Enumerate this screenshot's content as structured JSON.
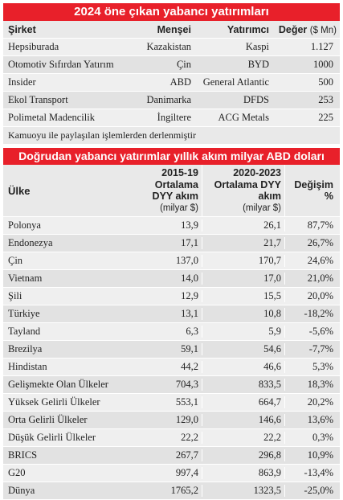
{
  "investments_table": {
    "title": "2024 öne çıkan yabancı yatırımları",
    "headers": {
      "company": "Şirket",
      "origin": "Menşei",
      "investor": "Yatırımcı",
      "value": "Değer",
      "value_unit": "($ Mn)"
    },
    "rows": [
      {
        "company": "Hepsiburada",
        "origin": "Kazakistan",
        "investor": "Kaspi",
        "value": "1.127"
      },
      {
        "company": "Otomotiv Sıfırdan Yatırım",
        "origin": "Çin",
        "investor": "BYD",
        "value": "1000"
      },
      {
        "company": "Insider",
        "origin": "ABD",
        "investor": "General Atlantic",
        "value": "500"
      },
      {
        "company": "Ekol Transport",
        "origin": "Danimarka",
        "investor": "DFDS",
        "value": "253"
      },
      {
        "company": "Polimetal Madencilik",
        "origin": "İngiltere",
        "investor": "ACG Metals",
        "value": "225"
      }
    ],
    "note": "Kamuoyu ile paylaşılan işlemlerden derlenmiştir"
  },
  "fdi_table": {
    "title": "Doğrudan yabancı yatırımlar yıllık akım milyar ABD doları",
    "headers": {
      "country": "Ülke",
      "avg1_line1": "2015-19",
      "avg1_line2": "Ortalama",
      "avg1_line3": "DYY akım",
      "avg1_unit": "(milyar $)",
      "avg2_line1": "2020-2023",
      "avg2_line2": "Ortalama DYY",
      "avg2_line3": "akım",
      "avg2_unit": "(milyar $)",
      "change": "Değişim %"
    },
    "rows": [
      {
        "country": "Polonya",
        "avg1": "13,9",
        "avg2": "26,1",
        "change": "87,7%"
      },
      {
        "country": "Endonezya",
        "avg1": "17,1",
        "avg2": "21,7",
        "change": "26,7%"
      },
      {
        "country": "Çin",
        "avg1": "137,0",
        "avg2": "170,7",
        "change": "24,6%"
      },
      {
        "country": "Vietnam",
        "avg1": "14,0",
        "avg2": "17,0",
        "change": "21,0%"
      },
      {
        "country": "Şili",
        "avg1": "12,9",
        "avg2": "15,5",
        "change": "20,0%"
      },
      {
        "country": "Türkiye",
        "avg1": "13,1",
        "avg2": "10,8",
        "change": "-18,2%"
      },
      {
        "country": "Tayland",
        "avg1": "6,3",
        "avg2": "5,9",
        "change": "-5,6%"
      },
      {
        "country": "Brezilya",
        "avg1": "59,1",
        "avg2": "54,6",
        "change": "-7,7%"
      },
      {
        "country": "Hindistan",
        "avg1": "44,2",
        "avg2": "46,6",
        "change": "5,3%"
      },
      {
        "country": "Gelişmekte Olan Ülkeler",
        "avg1": "704,3",
        "avg2": "833,5",
        "change": "18,3%"
      },
      {
        "country": "Yüksek Gelirli Ülkeler",
        "avg1": "553,1",
        "avg2": "664,7",
        "change": "20,2%"
      },
      {
        "country": "Orta Gelirli Ülkeler",
        "avg1": "129,0",
        "avg2": "146,6",
        "change": "13,6%"
      },
      {
        "country": "Düşük Gelirli Ülkeler",
        "avg1": "22,2",
        "avg2": "22,2",
        "change": "0,3%"
      },
      {
        "country": "BRICS",
        "avg1": "267,7",
        "avg2": "296,8",
        "change": "10,9%"
      },
      {
        "country": "G20",
        "avg1": "997,4",
        "avg2": "863,9",
        "change": "-13,4%"
      },
      {
        "country": "Dünya",
        "avg1": "1765,2",
        "avg2": "1323,5",
        "change": "-25,0%"
      }
    ]
  },
  "colors": {
    "accent": "#e8202a",
    "row_light": "#efefef",
    "row_dark": "#e2e2e2"
  }
}
